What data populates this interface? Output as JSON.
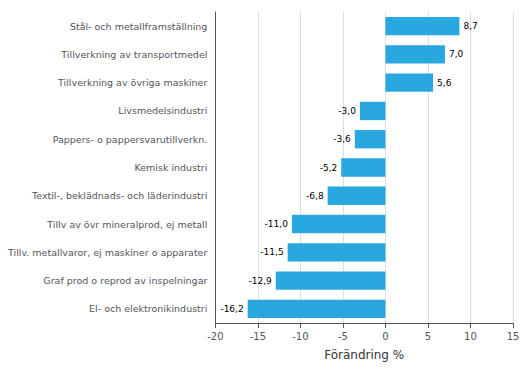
{
  "chart_data": {
    "type": "bar",
    "orientation": "horizontal",
    "categories": [
      "El- och elektronikindustri",
      "Graf prod o reprod av inspelningar",
      "Tillv. metallvaror, ej maskiner o apparater",
      "Tillv av övr mineralprod, ej metall",
      "Textil-, beklädnads- och läderindustri",
      "Kemisk industri",
      "Pappers- o pappersvarutillverkn.",
      "Livsmedelsindustri",
      "Tillverkning av övriga maskiner",
      "Tillverkning av transportmedel",
      "Stål- och metallframställning"
    ],
    "values": [
      -16.2,
      -12.9,
      -11.5,
      -11.0,
      -6.8,
      -5.2,
      -3.6,
      -3.0,
      5.6,
      7.0,
      8.7
    ],
    "value_labels": [
      "-16,2",
      "-12,9",
      "-11,5",
      "-11,0",
      "-6,8",
      "-5,2",
      "-3,6",
      "-3,0",
      "5,6",
      "7,0",
      "8,7"
    ],
    "data_labels": true,
    "color": "#29a8e0",
    "xlabel": "Förändring %",
    "xlim": [
      -20,
      15
    ],
    "xticks": [
      -20,
      -15,
      -10,
      -5,
      0,
      5,
      10,
      15
    ],
    "grid": true
  }
}
